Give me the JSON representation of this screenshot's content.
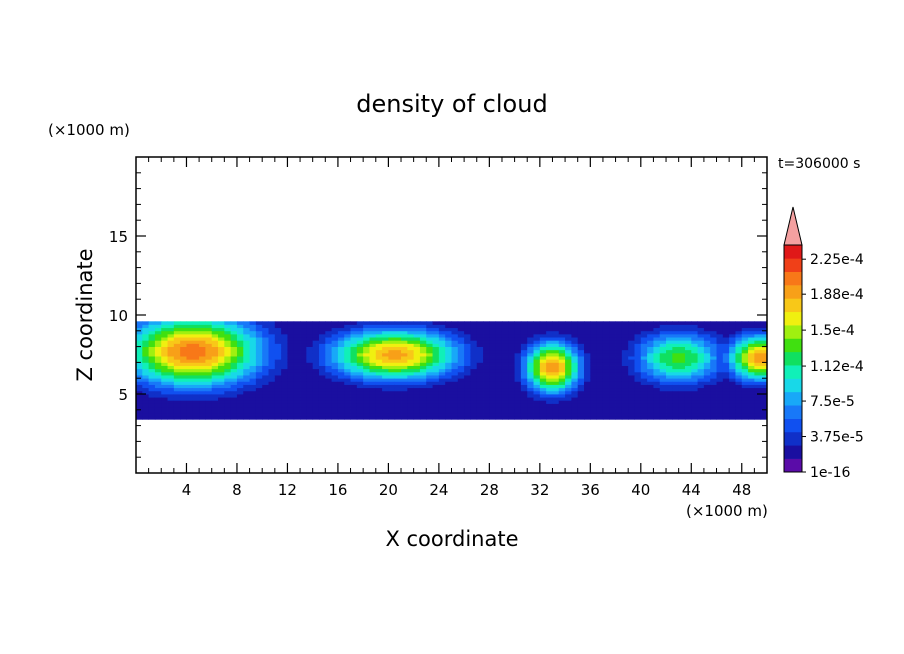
{
  "chart_data": {
    "type": "heatmap",
    "title": "density of cloud",
    "xlabel": "X coordinate",
    "ylabel": "Z coordinate",
    "x_unit": "(×1000 m)",
    "y_unit": "(×1000 m)",
    "time_label": "t=306000 s",
    "xlim": [
      0,
      50
    ],
    "ylim": [
      0,
      20
    ],
    "x_ticks": [
      4,
      8,
      12,
      16,
      20,
      24,
      28,
      32,
      36,
      40,
      44,
      48
    ],
    "y_ticks": [
      5,
      10,
      15
    ],
    "colorbar": {
      "labels": [
        "1e-16",
        "3.75e-5",
        "7.5e-5",
        "1.12e-4",
        "1.5e-4",
        "1.88e-4",
        "2.25e-4"
      ],
      "label_values": [
        0,
        3.75e-05,
        7.5e-05,
        0.000112,
        0.00015,
        0.000188,
        0.000225
      ],
      "max": 0.00024,
      "colors": [
        "#5a0ca8",
        "#1a0fa0",
        "#1030c8",
        "#1050f0",
        "#1878f8",
        "#18a8f8",
        "#18d8e8",
        "#10f0b8",
        "#10e060",
        "#40e010",
        "#a0f010",
        "#f0f010",
        "#f8c818",
        "#f8a018",
        "#f87818",
        "#f04018",
        "#e01818"
      ],
      "extend_color": "#f4a0a0"
    },
    "cloud_band": {
      "z_top": 9.4,
      "z_bottom": 3.4
    },
    "cloud_cores": [
      {
        "x": 4.5,
        "z": 7.7,
        "rx": 6.5,
        "rz": 2.6,
        "peak": 0.000205
      },
      {
        "x": 20.5,
        "z": 7.5,
        "rx": 6.0,
        "rz": 1.9,
        "peak": 0.00019
      },
      {
        "x": 33.0,
        "z": 6.7,
        "rx": 2.6,
        "rz": 1.9,
        "peak": 0.000195
      },
      {
        "x": 43.0,
        "z": 7.3,
        "rx": 4.2,
        "rz": 2.0,
        "peak": 0.00013
      },
      {
        "x": 49.5,
        "z": 7.3,
        "rx": 3.0,
        "rz": 1.7,
        "peak": 0.00019
      }
    ]
  }
}
